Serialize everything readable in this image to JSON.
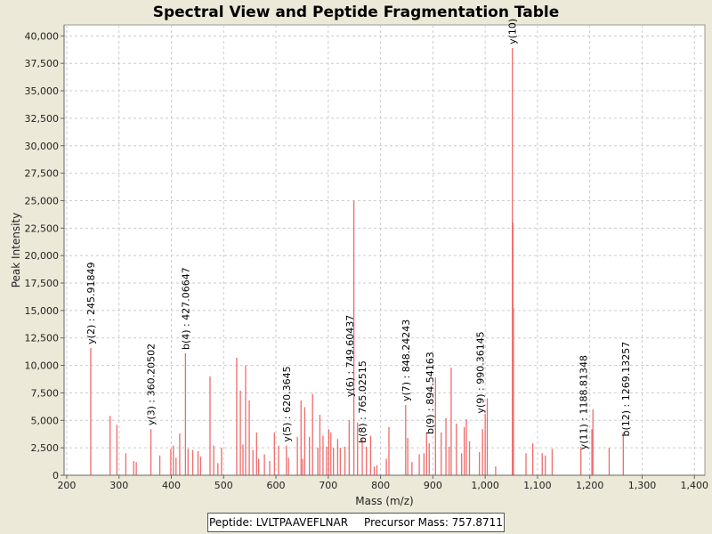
{
  "chart_data": {
    "type": "bar",
    "title": "Spectral View and Peptide Fragmentation Table",
    "xlabel": "Mass (m/z)",
    "ylabel": "Peak Intensity",
    "xlim": [
      195,
      1420
    ],
    "ylim": [
      0,
      41000
    ],
    "xticks": [
      200,
      300,
      400,
      500,
      600,
      700,
      800,
      900,
      1000,
      1100,
      1200,
      1300,
      1400
    ],
    "xtick_labels": [
      "200",
      "300",
      "400",
      "500",
      "600",
      "700",
      "800",
      "900",
      "1,000",
      "1,100",
      "1,200",
      "1,300",
      "1,400"
    ],
    "yticks": [
      0,
      2500,
      5000,
      7500,
      10000,
      12500,
      15000,
      17500,
      20000,
      22500,
      25000,
      27500,
      30000,
      32500,
      35000,
      37500,
      40000
    ],
    "ytick_labels": [
      "0",
      "2,500",
      "5,000",
      "7,500",
      "10,000",
      "12,500",
      "15,000",
      "17,500",
      "20,000",
      "22,500",
      "25,000",
      "27,500",
      "30,000",
      "32,500",
      "35,000",
      "37,500",
      "40,000"
    ],
    "grid": true,
    "bar_color": "#f06a6a",
    "peaks": [
      [
        246,
        11600
      ],
      [
        283,
        5400
      ],
      [
        296,
        4600
      ],
      [
        313,
        2000
      ],
      [
        328,
        1300
      ],
      [
        333,
        1200
      ],
      [
        361,
        4200
      ],
      [
        378,
        1800
      ],
      [
        399,
        2400
      ],
      [
        404,
        2700
      ],
      [
        409,
        1600
      ],
      [
        416,
        3800
      ],
      [
        427,
        11100
      ],
      [
        432,
        2400
      ],
      [
        441,
        2300
      ],
      [
        451,
        2200
      ],
      [
        456,
        1700
      ],
      [
        474,
        9000
      ],
      [
        481,
        2700
      ],
      [
        489,
        1100
      ],
      [
        496,
        2500
      ],
      [
        525,
        10700
      ],
      [
        532,
        7700
      ],
      [
        537,
        2800
      ],
      [
        542,
        10000
      ],
      [
        549,
        6800
      ],
      [
        556,
        2300
      ],
      [
        563,
        3900
      ],
      [
        567,
        1500
      ],
      [
        578,
        1900
      ],
      [
        588,
        1300
      ],
      [
        597,
        3900
      ],
      [
        605,
        2700
      ],
      [
        620,
        2700
      ],
      [
        624,
        1600
      ],
      [
        641,
        3500
      ],
      [
        648,
        6800
      ],
      [
        651,
        1500
      ],
      [
        655,
        6200
      ],
      [
        664,
        3500
      ],
      [
        670,
        7400
      ],
      [
        680,
        2500
      ],
      [
        684,
        5500
      ],
      [
        690,
        3600
      ],
      [
        697,
        2600
      ],
      [
        701,
        4200
      ],
      [
        705,
        3900
      ],
      [
        710,
        2500
      ],
      [
        718,
        3300
      ],
      [
        723,
        2500
      ],
      [
        732,
        2600
      ],
      [
        740,
        5000
      ],
      [
        749,
        25000
      ],
      [
        756,
        4800
      ],
      [
        765,
        3300
      ],
      [
        773,
        2600
      ],
      [
        781,
        3600
      ],
      [
        788,
        800
      ],
      [
        793,
        900
      ],
      [
        811,
        1500
      ],
      [
        816,
        4400
      ],
      [
        848,
        6400
      ],
      [
        852,
        3400
      ],
      [
        860,
        1200
      ],
      [
        874,
        1900
      ],
      [
        883,
        2000
      ],
      [
        888,
        3800
      ],
      [
        893,
        2900
      ],
      [
        905,
        8900
      ],
      [
        916,
        3900
      ],
      [
        925,
        5200
      ],
      [
        931,
        2600
      ],
      [
        935,
        9800
      ],
      [
        945,
        4700
      ],
      [
        955,
        2000
      ],
      [
        960,
        4400
      ],
      [
        964,
        5100
      ],
      [
        970,
        3100
      ],
      [
        989,
        2100
      ],
      [
        995,
        4200
      ],
      [
        1000,
        5600
      ],
      [
        1004,
        7000
      ],
      [
        1020,
        800
      ],
      [
        1052,
        38900
      ],
      [
        1053,
        23000
      ],
      [
        1054,
        15200
      ],
      [
        1078,
        2000
      ],
      [
        1091,
        2900
      ],
      [
        1109,
        2000
      ],
      [
        1115,
        1800
      ],
      [
        1128,
        2400
      ],
      [
        1183,
        2600
      ],
      [
        1204,
        4200
      ],
      [
        1206,
        6000
      ],
      [
        1237,
        2500
      ],
      [
        1264,
        3900
      ]
    ],
    "annotations": [
      {
        "x": 246,
        "y": 11600,
        "text": "y(2) : 245.91849"
      },
      {
        "x": 361,
        "y": 4200,
        "text": "y(3) : 360.20502"
      },
      {
        "x": 427,
        "y": 11100,
        "text": "b(4) : 427.06647"
      },
      {
        "x": 620,
        "y": 2700,
        "text": "y(5) : 620.3645"
      },
      {
        "x": 741,
        "y": 6800,
        "text": "y(6) : 749.60437"
      },
      {
        "x": 765,
        "y": 2600,
        "text": "b(8) : 765.02515"
      },
      {
        "x": 848,
        "y": 6400,
        "text": "y(7) : 848.24243"
      },
      {
        "x": 894,
        "y": 3400,
        "text": "b(9) : 894.54163"
      },
      {
        "x": 990,
        "y": 5300,
        "text": "y(9) : 990.36145"
      },
      {
        "x": 1052,
        "y": 38900,
        "text": "y(10)"
      },
      {
        "x": 1188,
        "y": 2000,
        "text": "y(11) : 1188.81348"
      },
      {
        "x": 1269,
        "y": 3200,
        "text": "b(12) : 1269.13257"
      }
    ]
  },
  "footer": {
    "peptide": "Peptide: LVLTPAAVEFLNAR",
    "precursor": "Precursor Mass: 757.8711"
  }
}
